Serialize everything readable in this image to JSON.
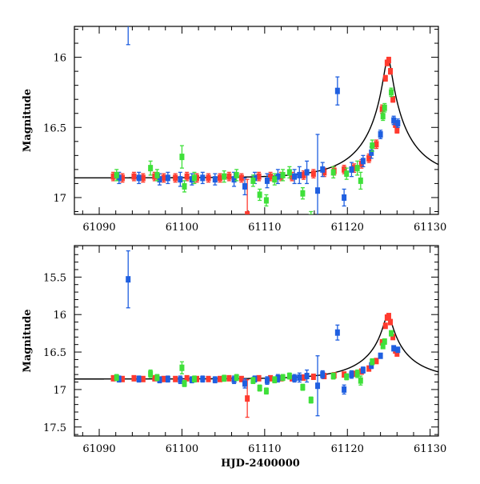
{
  "chart_data": [
    {
      "type": "scatter",
      "title": "",
      "ylabel": "Magnitude",
      "xlabel": "",
      "xlim": [
        61087,
        61131
      ],
      "ylim": [
        17.12,
        15.78
      ],
      "xticks": [
        61090,
        61100,
        61110,
        61120,
        61130
      ],
      "yticks": [
        16,
        16.5,
        17
      ],
      "xtick_labels": [
        "61090",
        "61100",
        "61110",
        "61120",
        "61130"
      ],
      "ytick_labels": [
        "16",
        "16.5",
        "17"
      ],
      "model": {
        "baseline": 16.86,
        "t0": 61124.9,
        "peak": 16.01,
        "color": "#000000"
      },
      "series": [
        {
          "name": "red",
          "color": "#ff3b2f",
          "points": [
            {
              "x": 61091.7,
              "y": 16.85,
              "err": 0.03
            },
            {
              "x": 61092.8,
              "y": 16.86,
              "err": 0.03
            },
            {
              "x": 61094.2,
              "y": 16.85,
              "err": 0.03
            },
            {
              "x": 61095.3,
              "y": 16.86,
              "err": 0.03
            },
            {
              "x": 61096.7,
              "y": 16.85,
              "err": 0.03
            },
            {
              "x": 61097.8,
              "y": 16.86,
              "err": 0.03
            },
            {
              "x": 61099.2,
              "y": 16.86,
              "err": 0.03
            },
            {
              "x": 61100.6,
              "y": 16.85,
              "err": 0.03
            },
            {
              "x": 61101.8,
              "y": 16.86,
              "err": 0.03
            },
            {
              "x": 61103.2,
              "y": 16.86,
              "err": 0.03
            },
            {
              "x": 61104.6,
              "y": 16.86,
              "err": 0.03
            },
            {
              "x": 61105.7,
              "y": 16.85,
              "err": 0.03
            },
            {
              "x": 61107.2,
              "y": 16.86,
              "err": 0.03
            },
            {
              "x": 61107.9,
              "y": 17.12,
              "err": 0.25
            },
            {
              "x": 61109.3,
              "y": 16.85,
              "err": 0.03
            },
            {
              "x": 61110.7,
              "y": 16.85,
              "err": 0.03
            },
            {
              "x": 61112.0,
              "y": 16.85,
              "err": 0.03
            },
            {
              "x": 61113.3,
              "y": 16.85,
              "err": 0.03
            },
            {
              "x": 61114.7,
              "y": 16.84,
              "err": 0.03
            },
            {
              "x": 61115.9,
              "y": 16.83,
              "err": 0.03
            },
            {
              "x": 61117.2,
              "y": 16.82,
              "err": 0.03
            },
            {
              "x": 61118.4,
              "y": 16.81,
              "err": 0.03
            },
            {
              "x": 61119.6,
              "y": 16.8,
              "err": 0.03
            },
            {
              "x": 61120.8,
              "y": 16.79,
              "err": 0.03
            },
            {
              "x": 61121.7,
              "y": 16.76,
              "err": 0.03
            },
            {
              "x": 61122.6,
              "y": 16.72,
              "err": 0.03
            },
            {
              "x": 61123.5,
              "y": 16.62,
              "err": 0.03
            },
            {
              "x": 61124.2,
              "y": 16.37,
              "err": 0.03
            },
            {
              "x": 61124.6,
              "y": 16.15,
              "err": 0.02
            },
            {
              "x": 61124.8,
              "y": 16.04,
              "err": 0.02
            },
            {
              "x": 61125.0,
              "y": 16.02,
              "err": 0.02
            },
            {
              "x": 61125.2,
              "y": 16.1,
              "err": 0.02
            },
            {
              "x": 61125.5,
              "y": 16.3,
              "err": 0.02
            },
            {
              "x": 61125.8,
              "y": 16.48,
              "err": 0.02
            },
            {
              "x": 61126.0,
              "y": 16.52,
              "err": 0.02
            }
          ]
        },
        {
          "name": "blue",
          "color": "#1f5fe0",
          "points": [
            {
              "x": 61092.4,
              "y": 16.86,
              "err": 0.04
            },
            {
              "x": 61093.5,
              "y": 15.53,
              "err": 0.38
            },
            {
              "x": 61094.8,
              "y": 16.86,
              "err": 0.04
            },
            {
              "x": 61097.3,
              "y": 16.87,
              "err": 0.04
            },
            {
              "x": 61098.3,
              "y": 16.86,
              "err": 0.04
            },
            {
              "x": 61099.8,
              "y": 16.87,
              "err": 0.05
            },
            {
              "x": 61101.2,
              "y": 16.87,
              "err": 0.04
            },
            {
              "x": 61102.5,
              "y": 16.86,
              "err": 0.04
            },
            {
              "x": 61104.0,
              "y": 16.87,
              "err": 0.04
            },
            {
              "x": 61106.3,
              "y": 16.87,
              "err": 0.05
            },
            {
              "x": 61107.6,
              "y": 16.92,
              "err": 0.06
            },
            {
              "x": 61108.8,
              "y": 16.86,
              "err": 0.04
            },
            {
              "x": 61110.3,
              "y": 16.88,
              "err": 0.05
            },
            {
              "x": 61111.6,
              "y": 16.85,
              "err": 0.05
            },
            {
              "x": 61113.6,
              "y": 16.85,
              "err": 0.05
            },
            {
              "x": 61114.2,
              "y": 16.84,
              "err": 0.06
            },
            {
              "x": 61115.1,
              "y": 16.82,
              "err": 0.08
            },
            {
              "x": 61116.4,
              "y": 16.95,
              "err": 0.4
            },
            {
              "x": 61117.0,
              "y": 16.8,
              "err": 0.05
            },
            {
              "x": 61118.8,
              "y": 16.24,
              "err": 0.1
            },
            {
              "x": 61119.6,
              "y": 17.0,
              "err": 0.06
            },
            {
              "x": 61120.5,
              "y": 16.8,
              "err": 0.05
            },
            {
              "x": 61121.9,
              "y": 16.74,
              "err": 0.04
            },
            {
              "x": 61122.9,
              "y": 16.68,
              "err": 0.04
            },
            {
              "x": 61124.0,
              "y": 16.55,
              "err": 0.03
            },
            {
              "x": 61125.6,
              "y": 16.45,
              "err": 0.03
            },
            {
              "x": 61126.1,
              "y": 16.47,
              "err": 0.03
            }
          ]
        },
        {
          "name": "green",
          "color": "#3fe03a",
          "points": [
            {
              "x": 61092.1,
              "y": 16.84,
              "err": 0.04
            },
            {
              "x": 61096.2,
              "y": 16.79,
              "err": 0.05
            },
            {
              "x": 61097.0,
              "y": 16.84,
              "err": 0.04
            },
            {
              "x": 61100.0,
              "y": 16.71,
              "err": 0.08
            },
            {
              "x": 61100.3,
              "y": 16.92,
              "err": 0.04
            },
            {
              "x": 61101.5,
              "y": 16.86,
              "err": 0.04
            },
            {
              "x": 61105.1,
              "y": 16.85,
              "err": 0.04
            },
            {
              "x": 61106.6,
              "y": 16.84,
              "err": 0.04
            },
            {
              "x": 61108.6,
              "y": 16.88,
              "err": 0.04
            },
            {
              "x": 61109.4,
              "y": 16.98,
              "err": 0.04
            },
            {
              "x": 61110.2,
              "y": 17.02,
              "err": 0.04
            },
            {
              "x": 61111.2,
              "y": 16.87,
              "err": 0.04
            },
            {
              "x": 61112.2,
              "y": 16.84,
              "err": 0.04
            },
            {
              "x": 61113.0,
              "y": 16.82,
              "err": 0.04
            },
            {
              "x": 61114.6,
              "y": 16.97,
              "err": 0.04
            },
            {
              "x": 61115.6,
              "y": 17.14,
              "err": 0.04
            },
            {
              "x": 61118.3,
              "y": 16.82,
              "err": 0.04
            },
            {
              "x": 61119.9,
              "y": 16.83,
              "err": 0.04
            },
            {
              "x": 61121.2,
              "y": 16.79,
              "err": 0.05
            },
            {
              "x": 61121.6,
              "y": 16.88,
              "err": 0.06
            },
            {
              "x": 61123.0,
              "y": 16.63,
              "err": 0.04
            },
            {
              "x": 61124.3,
              "y": 16.42,
              "err": 0.03
            },
            {
              "x": 61124.5,
              "y": 16.36,
              "err": 0.03
            },
            {
              "x": 61125.3,
              "y": 16.25,
              "err": 0.03
            }
          ]
        }
      ]
    },
    {
      "type": "scatter",
      "title": "",
      "ylabel": "Magnitude",
      "xlabel": "HJD-2400000",
      "xlim": [
        61087,
        61131
      ],
      "ylim": [
        17.62,
        15.08
      ],
      "xticks": [
        61090,
        61100,
        61110,
        61120,
        61130
      ],
      "yticks": [
        15.5,
        16,
        16.5,
        17,
        17.5
      ],
      "xtick_labels": [
        "61090",
        "61100",
        "61110",
        "61120",
        "61130"
      ],
      "ytick_labels": [
        "15.5",
        "16",
        "16.5",
        "17",
        "17.5"
      ],
      "model": {
        "baseline": 16.86,
        "t0": 61124.9,
        "peak": 16.01,
        "color": "#000000"
      },
      "series_ref": "same as panel 1"
    }
  ]
}
